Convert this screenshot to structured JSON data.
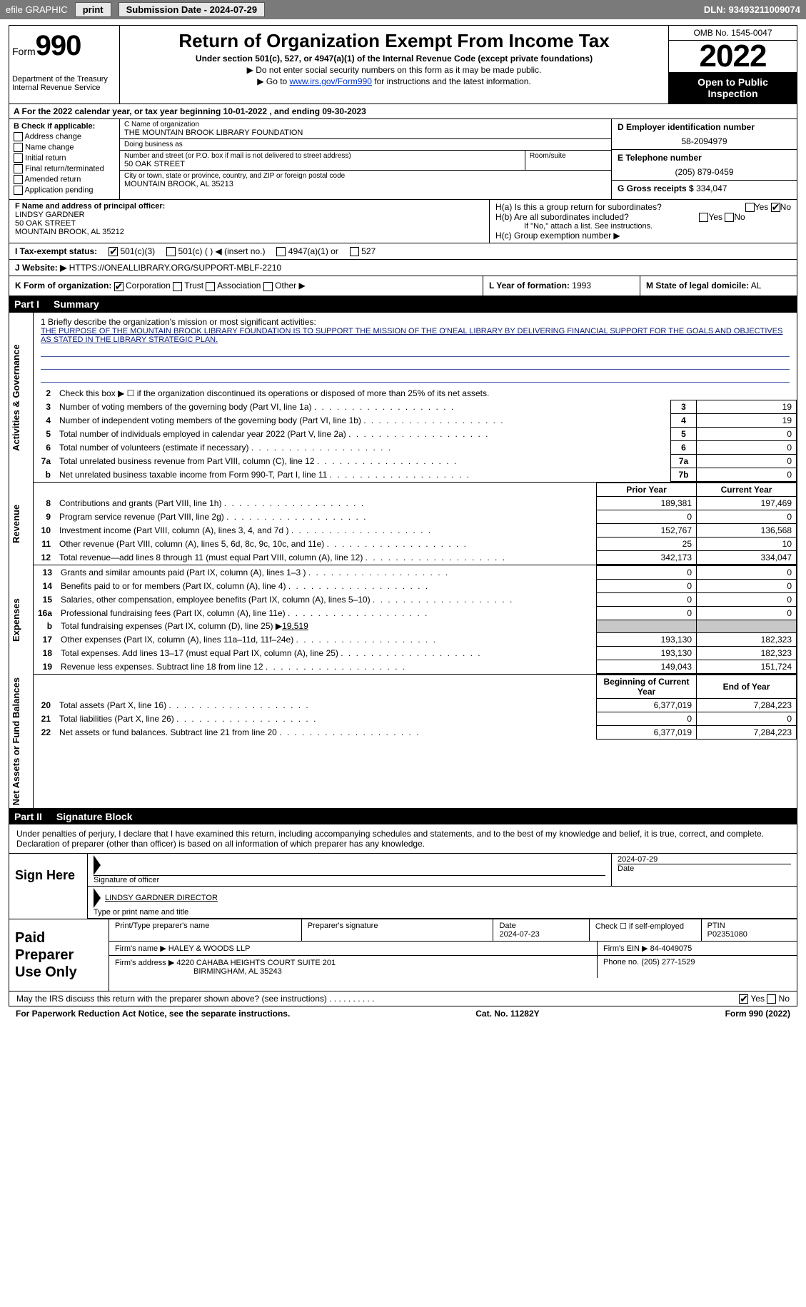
{
  "topbar": {
    "efile": "efile GRAPHIC",
    "print": "print",
    "submission_label": "Submission Date - 2024-07-29",
    "dln_label": "DLN: 93493211009074"
  },
  "header": {
    "form_word": "Form",
    "form_num": "990",
    "dept": "Department of the Treasury Internal Revenue Service",
    "title": "Return of Organization Exempt From Income Tax",
    "subtitle": "Under section 501(c), 527, or 4947(a)(1) of the Internal Revenue Code (except private foundations)",
    "note1": "▶ Do not enter social security numbers on this form as it may be made public.",
    "note2_pre": "▶ Go to ",
    "note2_link": "www.irs.gov/Form990",
    "note2_post": " for instructions and the latest information.",
    "omb": "OMB No. 1545-0047",
    "year": "2022",
    "open": "Open to Public Inspection"
  },
  "row_a": "A For the 2022 calendar year, or tax year beginning 10-01-2022   , and ending 09-30-2023",
  "b": {
    "label": "B Check if applicable:",
    "items": [
      "Address change",
      "Name change",
      "Initial return",
      "Final return/terminated",
      "Amended return",
      "Application pending"
    ]
  },
  "c": {
    "name_lbl": "C Name of organization",
    "name": "THE MOUNTAIN BROOK LIBRARY FOUNDATION",
    "dba_lbl": "Doing business as",
    "dba": "",
    "street_lbl": "Number and street (or P.O. box if mail is not delivered to street address)",
    "street": "50 OAK STREET",
    "room_lbl": "Room/suite",
    "room": "",
    "city_lbl": "City or town, state or province, country, and ZIP or foreign postal code",
    "city": "MOUNTAIN BROOK, AL  35213"
  },
  "d": {
    "lbl": "D Employer identification number",
    "val": "58-2094979"
  },
  "e": {
    "lbl": "E Telephone number",
    "val": "(205) 879-0459"
  },
  "g": {
    "lbl": "G Gross receipts $",
    "val": "334,047"
  },
  "f": {
    "lbl": "F Name and address of principal officer:",
    "name": "LINDSY GARDNER",
    "street": "50 OAK STREET",
    "city": "MOUNTAIN BROOK, AL  35212"
  },
  "h": {
    "a": "H(a)  Is this a group return for subordinates?",
    "b": "H(b)  Are all subordinates included?",
    "note": "If \"No,\" attach a list. See instructions.",
    "c": "H(c)  Group exemption number ▶",
    "yes": "Yes",
    "no": "No"
  },
  "i": {
    "lbl": "I   Tax-exempt status:",
    "opt1": "501(c)(3)",
    "opt2": "501(c) (   ) ◀ (insert no.)",
    "opt3": "4947(a)(1) or",
    "opt4": "527"
  },
  "j": {
    "lbl": "J   Website: ▶",
    "val": "HTTPS://ONEALLIBRARY.ORG/SUPPORT-MBLF-2210"
  },
  "k": {
    "lbl": "K Form of organization:",
    "corp": "Corporation",
    "trust": "Trust",
    "assoc": "Association",
    "other": "Other ▶"
  },
  "l": {
    "lbl": "L Year of formation:",
    "val": "1993"
  },
  "m": {
    "lbl": "M State of legal domicile:",
    "val": "AL"
  },
  "part1": {
    "num": "Part I",
    "title": "Summary"
  },
  "section_labels": {
    "act": "Activities & Governance",
    "rev": "Revenue",
    "exp": "Expenses",
    "net": "Net Assets or Fund Balances"
  },
  "mission": {
    "q": "1  Briefly describe the organization's mission or most significant activities:",
    "val": "THE PURPOSE OF THE MOUNTAIN BROOK LIBRARY FOUNDATION IS TO SUPPORT THE MISSION OF THE O'NEAL LIBRARY BY DELIVERING FINANCIAL SUPPORT FOR THE GOALS AND OBJECTIVES AS STATED IN THE LIBRARY STRATEGIC PLAN."
  },
  "line2": "Check this box ▶ ☐ if the organization discontinued its operations or disposed of more than 25% of its net assets.",
  "gov_rows": [
    {
      "n": "3",
      "t": "Number of voting members of the governing body (Part VI, line 1a)",
      "box": "3",
      "v": "19"
    },
    {
      "n": "4",
      "t": "Number of independent voting members of the governing body (Part VI, line 1b)",
      "box": "4",
      "v": "19"
    },
    {
      "n": "5",
      "t": "Total number of individuals employed in calendar year 2022 (Part V, line 2a)",
      "box": "5",
      "v": "0"
    },
    {
      "n": "6",
      "t": "Total number of volunteers (estimate if necessary)",
      "box": "6",
      "v": "0"
    },
    {
      "n": "7a",
      "t": "Total unrelated business revenue from Part VIII, column (C), line 12",
      "box": "7a",
      "v": "0"
    },
    {
      "n": "b",
      "t": "Net unrelated business taxable income from Form 990-T, Part I, line 11",
      "box. ": "7b",
      "box": "7b",
      "v": "0"
    }
  ],
  "pycy_hdr": {
    "py": "Prior Year",
    "cy": "Current Year"
  },
  "rev_rows": [
    {
      "n": "8",
      "t": "Contributions and grants (Part VIII, line 1h)",
      "py": "189,381",
      "cy": "197,469"
    },
    {
      "n": "9",
      "t": "Program service revenue (Part VIII, line 2g)",
      "py": "0",
      "cy": "0"
    },
    {
      "n": "10",
      "t": "Investment income (Part VIII, column (A), lines 3, 4, and 7d )",
      "py": "152,767",
      "cy": "136,568"
    },
    {
      "n": "11",
      "t": "Other revenue (Part VIII, column (A), lines 5, 6d, 8c, 9c, 10c, and 11e)",
      "py": "25",
      "cy": "10"
    },
    {
      "n": "12",
      "t": "Total revenue—add lines 8 through 11 (must equal Part VIII, column (A), line 12)",
      "py": "342,173",
      "cy": "334,047"
    }
  ],
  "exp_rows": [
    {
      "n": "13",
      "t": "Grants and similar amounts paid (Part IX, column (A), lines 1–3 )",
      "py": "0",
      "cy": "0"
    },
    {
      "n": "14",
      "t": "Benefits paid to or for members (Part IX, column (A), line 4)",
      "py": "0",
      "cy": "0"
    },
    {
      "n": "15",
      "t": "Salaries, other compensation, employee benefits (Part IX, column (A), lines 5–10)",
      "py": "0",
      "cy": "0"
    },
    {
      "n": "16a",
      "t": "Professional fundraising fees (Part IX, column (A), line 11e)",
      "py": "0",
      "cy": "0"
    }
  ],
  "line16b": {
    "n": "b",
    "t": "Total fundraising expenses (Part IX, column (D), line 25) ▶",
    "v": "19,519"
  },
  "exp_rows2": [
    {
      "n": "17",
      "t": "Other expenses (Part IX, column (A), lines 11a–11d, 11f–24e)",
      "py": "193,130",
      "cy": "182,323"
    },
    {
      "n": "18",
      "t": "Total expenses. Add lines 13–17 (must equal Part IX, column (A), line 25)",
      "py": "193,130",
      "cy": "182,323"
    },
    {
      "n": "19",
      "t": "Revenue less expenses. Subtract line 18 from line 12",
      "py": "149,043",
      "cy": "151,724"
    }
  ],
  "net_hdr": {
    "b": "Beginning of Current Year",
    "e": "End of Year"
  },
  "net_rows": [
    {
      "n": "20",
      "t": "Total assets (Part X, line 16)",
      "b": "6,377,019",
      "e": "7,284,223"
    },
    {
      "n": "21",
      "t": "Total liabilities (Part X, line 26)",
      "b": "0",
      "e": "0"
    },
    {
      "n": "22",
      "t": "Net assets or fund balances. Subtract line 21 from line 20",
      "b": "6,377,019",
      "e": "7,284,223"
    }
  ],
  "part2": {
    "num": "Part II",
    "title": "Signature Block"
  },
  "sig_intro": "Under penalties of perjury, I declare that I have examined this return, including accompanying schedules and statements, and to the best of my knowledge and belief, it is true, correct, and complete. Declaration of preparer (other than officer) is based on all information of which preparer has any knowledge.",
  "sign": {
    "side": "Sign Here",
    "sig_lbl": "Signature of officer",
    "date_lbl": "Date",
    "date": "2024-07-29",
    "name": "LINDSY GARDNER  DIRECTOR",
    "name_lbl": "Type or print name and title"
  },
  "prep": {
    "side": "Paid Preparer Use Only",
    "r1": {
      "a": "Print/Type preparer's name",
      "b": "Preparer's signature",
      "c": "Date",
      "c_v": "2024-07-23",
      "d": "Check ☐ if self-employed",
      "e": "PTIN",
      "e_v": "P02351080"
    },
    "r2": {
      "a": "Firm's name    ▶",
      "a_v": "HALEY & WOODS LLP",
      "b": "Firm's EIN ▶",
      "b_v": "84-4049075"
    },
    "r3": {
      "a": "Firm's address ▶",
      "a_v": "4220 CAHABA HEIGHTS COURT SUITE 201",
      "a_v2": "BIRMINGHAM, AL  35243",
      "b": "Phone no.",
      "b_v": "(205) 277-1529"
    }
  },
  "discuss": {
    "q": "May the IRS discuss this return with the preparer shown above? (see instructions)",
    "yes": "Yes",
    "no": "No"
  },
  "footer": {
    "a": "For Paperwork Reduction Act Notice, see the separate instructions.",
    "b": "Cat. No. 11282Y",
    "c": "Form 990 (2022)"
  }
}
